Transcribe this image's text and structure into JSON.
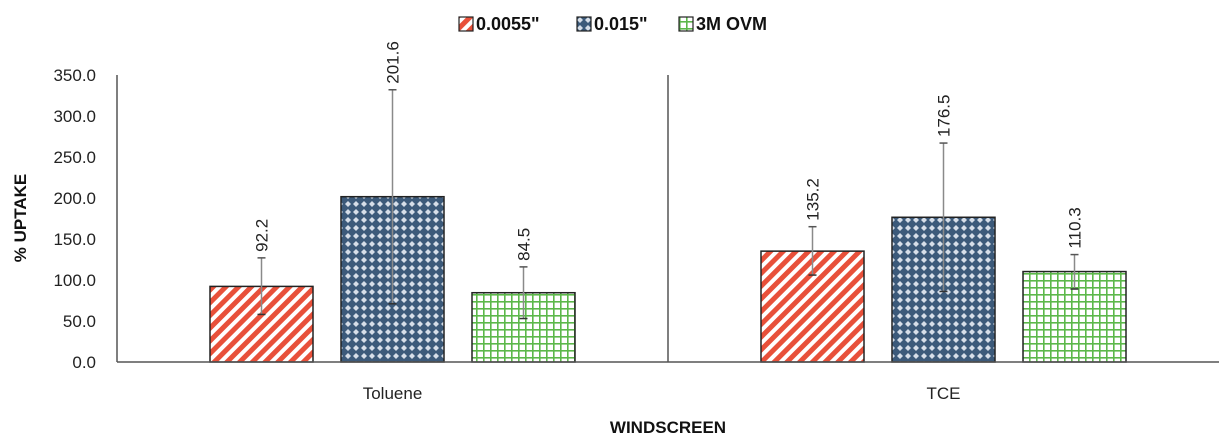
{
  "chart_data": {
    "type": "bar",
    "title": "",
    "xlabel": "WINDSCREEN",
    "ylabel": "% UPTAKE",
    "categories": [
      "Toluene",
      "TCE"
    ],
    "ylim": [
      0,
      350
    ],
    "yticks": [
      "0.0",
      "50.0",
      "100.0",
      "150.0",
      "200.0",
      "250.0",
      "300.0",
      "350.0"
    ],
    "grid": false,
    "legend_position": "top",
    "series": [
      {
        "name": "0.0055\"",
        "values": [
          92.2,
          135.2
        ],
        "labels": [
          "92.2",
          "135.2"
        ],
        "error_low": [
          58,
          106
        ],
        "error_high": [
          127,
          165
        ],
        "color": "#e8503a",
        "pattern": "diagonal-stripes"
      },
      {
        "name": "0.015\"",
        "values": [
          201.6,
          176.5
        ],
        "labels": [
          "201.6",
          "176.5"
        ],
        "error_low": [
          71,
          86
        ],
        "error_high": [
          332,
          267
        ],
        "color": "#3c5a7a",
        "pattern": "diamond-lattice"
      },
      {
        "name": "3M OVM",
        "values": [
          84.5,
          110.3
        ],
        "labels": [
          "84.5",
          "110.3"
        ],
        "error_low": [
          53,
          89
        ],
        "error_high": [
          116,
          131
        ],
        "color": "#5cb84a",
        "pattern": "grid"
      }
    ]
  }
}
